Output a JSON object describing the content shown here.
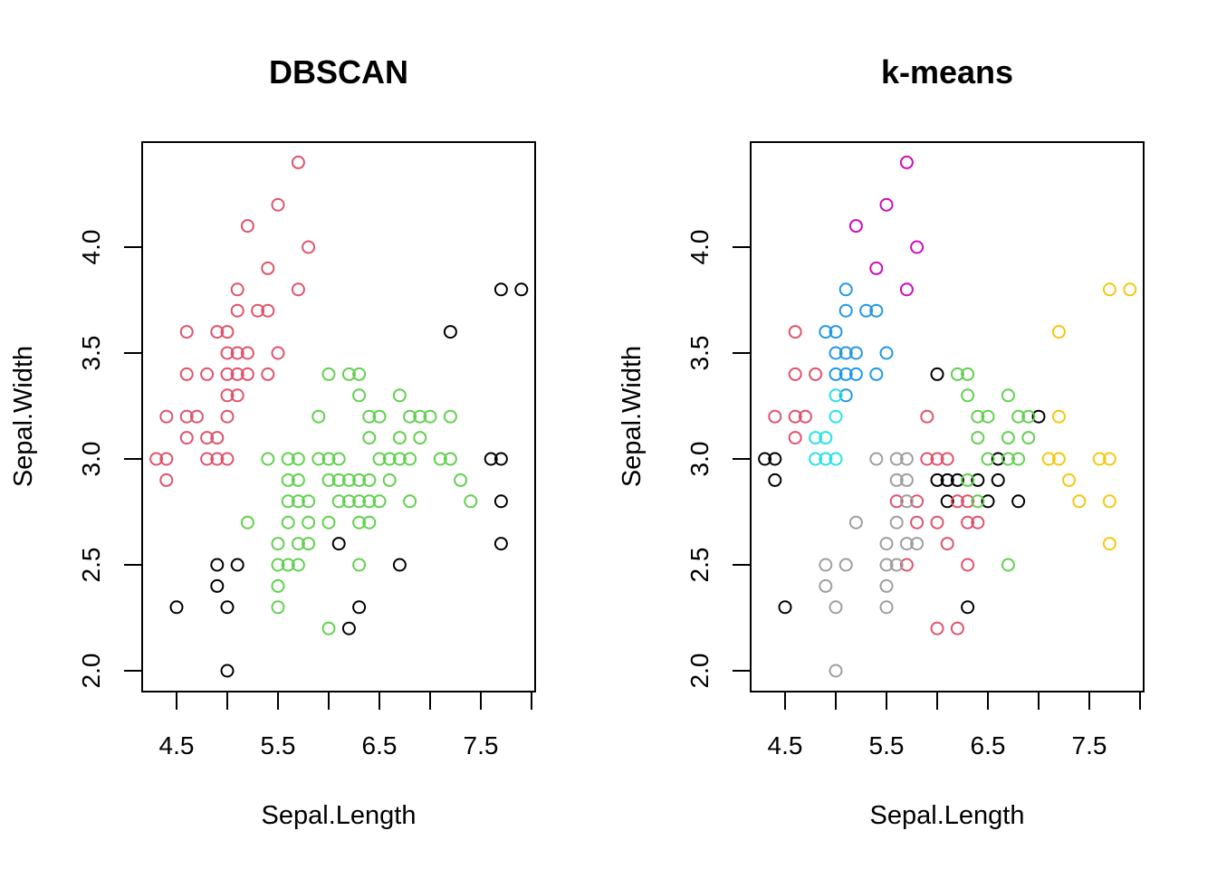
{
  "chart_data": [
    {
      "type": "scatter",
      "title": "DBSCAN",
      "xlabel": "Sepal.Length",
      "ylabel": "Sepal.Width",
      "xlim": [
        4.3,
        7.9
      ],
      "ylim": [
        2.0,
        4.4
      ],
      "xticks": [
        4.5,
        5.0,
        5.5,
        6.0,
        6.5,
        7.0,
        7.5,
        8.0
      ],
      "xtick_labels": [
        "4.5",
        "",
        "5.5",
        "",
        "6.5",
        "",
        "7.5",
        ""
      ],
      "yticks": [
        2.0,
        2.5,
        3.0,
        3.5,
        4.0
      ],
      "ytick_labels": [
        "2.0",
        "2.5",
        "3.0",
        "3.5",
        "4.0"
      ],
      "grid": false,
      "marker": "open-circle",
      "series": [
        {
          "color": "#000000",
          "points": [
            [
              4.5,
              2.3
            ],
            [
              4.9,
              2.4
            ],
            [
              5.0,
              2.0
            ],
            [
              6.2,
              2.2
            ],
            [
              6.3,
              2.3
            ],
            [
              5.0,
              2.3
            ],
            [
              5.1,
              2.5
            ],
            [
              7.6,
              3.0
            ],
            [
              4.9,
              2.5
            ],
            [
              6.7,
              2.5
            ],
            [
              7.2,
              3.6
            ],
            [
              7.7,
              3.8
            ],
            [
              7.7,
              2.6
            ],
            [
              7.7,
              2.8
            ],
            [
              7.9,
              3.8
            ],
            [
              6.1,
              2.6
            ],
            [
              7.7,
              3.0
            ]
          ]
        },
        {
          "color": "#DF536B",
          "points": [
            [
              5.1,
              3.5
            ],
            [
              4.9,
              3.0
            ],
            [
              4.7,
              3.2
            ],
            [
              4.6,
              3.1
            ],
            [
              5.0,
              3.6
            ],
            [
              5.4,
              3.9
            ],
            [
              4.6,
              3.4
            ],
            [
              5.0,
              3.4
            ],
            [
              4.4,
              2.9
            ],
            [
              4.9,
              3.1
            ],
            [
              5.4,
              3.7
            ],
            [
              4.8,
              3.4
            ],
            [
              4.8,
              3.0
            ],
            [
              4.3,
              3.0
            ],
            [
              5.8,
              4.0
            ],
            [
              5.7,
              4.4
            ],
            [
              5.7,
              3.8
            ],
            [
              5.1,
              3.8
            ],
            [
              5.4,
              3.4
            ],
            [
              5.1,
              3.7
            ],
            [
              4.6,
              3.6
            ],
            [
              5.1,
              3.3
            ],
            [
              5.0,
              3.0
            ],
            [
              5.2,
              3.5
            ],
            [
              5.2,
              3.4
            ],
            [
              4.8,
              3.1
            ],
            [
              5.2,
              4.1
            ],
            [
              5.5,
              4.2
            ],
            [
              5.0,
              3.2
            ],
            [
              5.5,
              3.5
            ],
            [
              4.9,
              3.6
            ],
            [
              4.4,
              3.0
            ],
            [
              5.1,
              3.4
            ],
            [
              5.0,
              3.5
            ],
            [
              4.4,
              3.2
            ],
            [
              4.6,
              3.2
            ],
            [
              5.3,
              3.7
            ],
            [
              5.0,
              3.3
            ]
          ]
        },
        {
          "color": "#61D04F",
          "points": [
            [
              7.0,
              3.2
            ],
            [
              6.4,
              3.2
            ],
            [
              6.9,
              3.1
            ],
            [
              5.5,
              2.3
            ],
            [
              6.5,
              2.8
            ],
            [
              5.7,
              2.8
            ],
            [
              6.3,
              3.3
            ],
            [
              6.6,
              2.9
            ],
            [
              5.2,
              2.7
            ],
            [
              5.9,
              3.0
            ],
            [
              6.0,
              2.2
            ],
            [
              6.1,
              2.9
            ],
            [
              5.6,
              2.9
            ],
            [
              6.7,
              3.1
            ],
            [
              5.6,
              3.0
            ],
            [
              5.8,
              2.7
            ],
            [
              5.6,
              2.5
            ],
            [
              5.9,
              3.2
            ],
            [
              6.1,
              2.8
            ],
            [
              6.3,
              2.5
            ],
            [
              6.4,
              2.9
            ],
            [
              6.6,
              3.0
            ],
            [
              6.8,
              2.8
            ],
            [
              6.7,
              3.0
            ],
            [
              6.0,
              2.9
            ],
            [
              5.7,
              2.6
            ],
            [
              5.5,
              2.4
            ],
            [
              6.0,
              2.7
            ],
            [
              5.4,
              3.0
            ],
            [
              6.0,
              3.4
            ],
            [
              5.5,
              2.5
            ],
            [
              5.5,
              2.6
            ],
            [
              6.1,
              3.0
            ],
            [
              5.8,
              2.6
            ],
            [
              5.6,
              2.7
            ],
            [
              5.7,
              3.0
            ],
            [
              5.7,
              2.9
            ],
            [
              6.2,
              2.9
            ],
            [
              7.1,
              3.0
            ],
            [
              6.3,
              2.9
            ],
            [
              6.5,
              3.0
            ],
            [
              7.3,
              2.9
            ],
            [
              6.5,
              3.2
            ],
            [
              6.4,
              2.7
            ],
            [
              6.8,
              3.0
            ],
            [
              5.7,
              2.5
            ],
            [
              5.8,
              2.8
            ],
            [
              7.2,
              3.2
            ],
            [
              6.2,
              2.8
            ],
            [
              6.4,
              2.8
            ],
            [
              7.2,
              3.0
            ],
            [
              7.4,
              2.8
            ],
            [
              6.3,
              2.8
            ],
            [
              6.3,
              3.4
            ],
            [
              6.4,
              3.1
            ],
            [
              6.0,
              3.0
            ],
            [
              6.8,
              3.2
            ],
            [
              6.7,
              3.3
            ],
            [
              6.3,
              2.7
            ],
            [
              6.2,
              3.4
            ],
            [
              5.6,
              2.8
            ],
            [
              6.9,
              3.2
            ]
          ]
        }
      ]
    },
    {
      "type": "scatter",
      "title": "k-means",
      "xlabel": "Sepal.Length",
      "ylabel": "Sepal.Width",
      "xlim": [
        4.3,
        7.9
      ],
      "ylim": [
        2.0,
        4.4
      ],
      "xticks": [
        4.5,
        5.0,
        5.5,
        6.0,
        6.5,
        7.0,
        7.5,
        8.0
      ],
      "xtick_labels": [
        "4.5",
        "",
        "5.5",
        "",
        "6.5",
        "",
        "7.5",
        ""
      ],
      "yticks": [
        2.0,
        2.5,
        3.0,
        3.5,
        4.0
      ],
      "ytick_labels": [
        "2.0",
        "2.5",
        "3.0",
        "3.5",
        "4.0"
      ],
      "grid": false,
      "marker": "open-circle",
      "series": [
        {
          "color": "#000000",
          "points": [
            [
              4.3,
              3.0
            ],
            [
              4.4,
              3.0
            ],
            [
              4.4,
              2.9
            ],
            [
              4.5,
              2.3
            ],
            [
              6.0,
              3.4
            ],
            [
              7.0,
              3.2
            ],
            [
              6.6,
              3.0
            ],
            [
              6.0,
              2.9
            ],
            [
              6.1,
              2.9
            ],
            [
              6.2,
              2.9
            ],
            [
              6.4,
              2.9
            ],
            [
              6.6,
              2.9
            ],
            [
              6.1,
              2.8
            ],
            [
              6.5,
              2.8
            ],
            [
              6.8,
              2.8
            ],
            [
              6.3,
              2.3
            ]
          ]
        },
        {
          "color": "#DF536B",
          "points": [
            [
              4.6,
              3.6
            ],
            [
              4.6,
              3.4
            ],
            [
              4.8,
              3.4
            ],
            [
              4.4,
              3.2
            ],
            [
              4.6,
              3.2
            ],
            [
              4.7,
              3.2
            ],
            [
              4.6,
              3.1
            ],
            [
              5.9,
              3.2
            ],
            [
              5.9,
              3.0
            ],
            [
              6.0,
              3.0
            ],
            [
              6.1,
              3.0
            ],
            [
              5.6,
              2.8
            ],
            [
              5.8,
              2.8
            ],
            [
              6.2,
              2.8
            ],
            [
              6.3,
              2.8
            ],
            [
              5.8,
              2.7
            ],
            [
              6.0,
              2.7
            ],
            [
              6.3,
              2.7
            ],
            [
              6.4,
              2.7
            ],
            [
              6.1,
              2.6
            ],
            [
              5.7,
              2.5
            ],
            [
              6.3,
              2.5
            ],
            [
              6.0,
              2.2
            ],
            [
              6.2,
              2.2
            ]
          ]
        },
        {
          "color": "#61D04F",
          "points": [
            [
              6.2,
              3.4
            ],
            [
              6.3,
              3.4
            ],
            [
              6.3,
              3.3
            ],
            [
              6.7,
              3.3
            ],
            [
              6.4,
              3.2
            ],
            [
              6.5,
              3.2
            ],
            [
              6.8,
              3.2
            ],
            [
              6.9,
              3.2
            ],
            [
              6.4,
              3.1
            ],
            [
              6.7,
              3.1
            ],
            [
              6.9,
              3.1
            ],
            [
              6.5,
              3.0
            ],
            [
              6.7,
              3.0
            ],
            [
              6.8,
              3.0
            ],
            [
              6.3,
              2.9
            ],
            [
              6.4,
              2.8
            ],
            [
              6.7,
              2.5
            ]
          ]
        },
        {
          "color": "#2297E6",
          "points": [
            [
              5.1,
              3.8
            ],
            [
              5.1,
              3.7
            ],
            [
              5.3,
              3.7
            ],
            [
              5.4,
              3.7
            ],
            [
              4.9,
              3.6
            ],
            [
              5.0,
              3.6
            ],
            [
              5.0,
              3.5
            ],
            [
              5.1,
              3.5
            ],
            [
              5.2,
              3.5
            ],
            [
              5.5,
              3.5
            ],
            [
              5.0,
              3.4
            ],
            [
              5.1,
              3.4
            ],
            [
              5.2,
              3.4
            ],
            [
              5.4,
              3.4
            ],
            [
              5.1,
              3.3
            ]
          ]
        },
        {
          "color": "#28E2E5",
          "points": [
            [
              5.0,
              3.3
            ],
            [
              5.0,
              3.2
            ],
            [
              4.8,
              3.1
            ],
            [
              4.9,
              3.1
            ],
            [
              4.8,
              3.0
            ],
            [
              4.9,
              3.0
            ],
            [
              5.0,
              3.0
            ]
          ]
        },
        {
          "color": "#CD0BBC",
          "points": [
            [
              5.7,
              4.4
            ],
            [
              5.5,
              4.2
            ],
            [
              5.2,
              4.1
            ],
            [
              5.8,
              4.0
            ],
            [
              5.4,
              3.9
            ],
            [
              5.7,
              3.8
            ]
          ]
        },
        {
          "color": "#F5C710",
          "points": [
            [
              7.7,
              3.8
            ],
            [
              7.9,
              3.8
            ],
            [
              7.2,
              3.6
            ],
            [
              7.2,
              3.2
            ],
            [
              7.1,
              3.0
            ],
            [
              7.2,
              3.0
            ],
            [
              7.6,
              3.0
            ],
            [
              7.7,
              3.0
            ],
            [
              7.3,
              2.9
            ],
            [
              7.4,
              2.8
            ],
            [
              7.7,
              2.8
            ],
            [
              7.7,
              2.6
            ]
          ]
        },
        {
          "color": "#9E9E9E",
          "points": [
            [
              5.4,
              3.0
            ],
            [
              5.6,
              3.0
            ],
            [
              5.7,
              3.0
            ],
            [
              5.6,
              2.9
            ],
            [
              5.7,
              2.9
            ],
            [
              5.7,
              2.8
            ],
            [
              5.2,
              2.7
            ],
            [
              5.6,
              2.7
            ],
            [
              5.5,
              2.6
            ],
            [
              5.7,
              2.6
            ],
            [
              5.8,
              2.6
            ],
            [
              4.9,
              2.5
            ],
            [
              5.1,
              2.5
            ],
            [
              5.5,
              2.5
            ],
            [
              5.6,
              2.5
            ],
            [
              4.9,
              2.4
            ],
            [
              5.5,
              2.4
            ],
            [
              5.0,
              2.3
            ],
            [
              5.5,
              2.3
            ],
            [
              5.0,
              2.0
            ]
          ]
        }
      ]
    }
  ]
}
